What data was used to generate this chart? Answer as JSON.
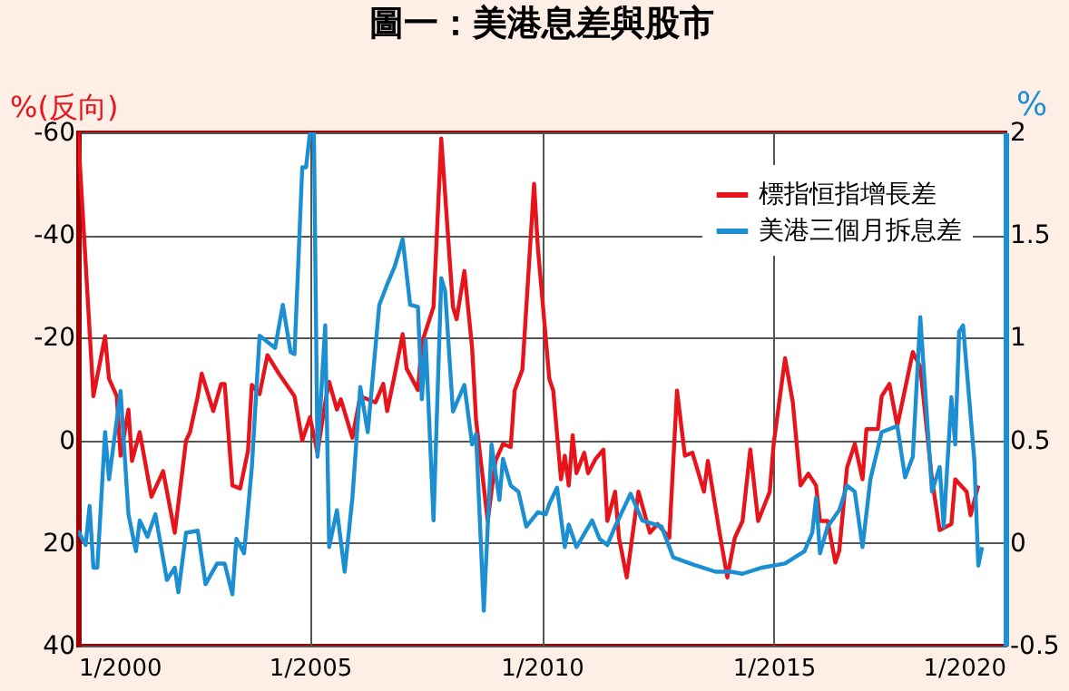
{
  "chart_data": {
    "type": "line",
    "title": "圖一：美港息差與股市",
    "ylabel": "%(反向)",
    "y2label": "%",
    "xlim": [
      "2000-01",
      "2020-01"
    ],
    "xticks": [
      {
        "value": "2000-01",
        "label": "1/2000"
      },
      {
        "value": "2005-01",
        "label": "1/2005"
      },
      {
        "value": "2010-01",
        "label": "1/2010"
      },
      {
        "value": "2015-01",
        "label": "1/2015"
      },
      {
        "value": "2020-01",
        "label": "1/2020"
      }
    ],
    "ylim": [
      40,
      -60
    ],
    "yticks": [
      -60,
      -40,
      -20,
      0,
      20,
      40
    ],
    "y2lim": [
      -0.5,
      2
    ],
    "y2ticks": [
      -0.5,
      0,
      0.5,
      1,
      1.5,
      2
    ],
    "grid": true,
    "legend": "top right",
    "line_style": "solid",
    "series": [
      {
        "name": "標指恒指增長差",
        "color": "#e8141b",
        "x": [
          "2000-01",
          "2000-05",
          "2000-08",
          "2000-09",
          "2000-11",
          "2000-12",
          "2001-02",
          "2001-03",
          "2001-05",
          "2001-08",
          "2001-11",
          "2002-02",
          "2002-05",
          "2002-06",
          "2002-08",
          "2002-09",
          "2002-12",
          "2003-02",
          "2003-03",
          "2003-05",
          "2003-07",
          "2003-09",
          "2003-10",
          "2003-12",
          "2004-02",
          "2004-05",
          "2004-09",
          "2004-11",
          "2005-01",
          "2005-03",
          "2005-05",
          "2005-06",
          "2005-08",
          "2005-09",
          "2005-12",
          "2006-02",
          "2006-06",
          "2006-08",
          "2006-09",
          "2006-11",
          "2007-01",
          "2007-02",
          "2007-05",
          "2007-06",
          "2007-09",
          "2007-11",
          "2008-02",
          "2008-03",
          "2008-05",
          "2008-07",
          "2008-08",
          "2008-11",
          "2009-01",
          "2009-03",
          "2009-05",
          "2009-06",
          "2009-08",
          "2009-11",
          "2009-12",
          "2010-03",
          "2010-04",
          "2010-06",
          "2010-07",
          "2010-08",
          "2010-09",
          "2010-10",
          "2010-12",
          "2011-01",
          "2011-03",
          "2011-05",
          "2011-06",
          "2011-08",
          "2011-09",
          "2011-11",
          "2012-02",
          "2012-05",
          "2012-07",
          "2012-10",
          "2012-12",
          "2013-02",
          "2013-04",
          "2013-07",
          "2013-08",
          "2013-11",
          "2014-01",
          "2014-03",
          "2014-05",
          "2014-07",
          "2014-09",
          "2014-12",
          "2015-01",
          "2015-04",
          "2015-06",
          "2015-08",
          "2015-10",
          "2015-12",
          "2016-01",
          "2016-03",
          "2016-05",
          "2016-06",
          "2016-08",
          "2016-10",
          "2016-12",
          "2017-01",
          "2017-04",
          "2017-05",
          "2017-07",
          "2017-09",
          "2018-01",
          "2018-03",
          "2018-06",
          "2018-08",
          "2018-11",
          "2018-12",
          "2019-03",
          "2019-04",
          "2019-06"
        ],
        "values": [
          -60,
          -8.6,
          -20.3,
          -12,
          -8.6,
          3,
          -6,
          4,
          -1.6,
          11,
          6,
          18,
          0,
          -1.6,
          -8.6,
          -13,
          -5.7,
          -11,
          -11,
          8.8,
          9.4,
          2,
          -10.8,
          -9,
          -16.6,
          -13,
          -8.6,
          0,
          -4.5,
          2.4,
          -7.4,
          -11.4,
          -6,
          -8,
          -0.5,
          -8.6,
          -7.4,
          -11,
          -5.7,
          -13,
          -20.7,
          -14,
          -9.8,
          -19,
          -26,
          -58.8,
          -26,
          -23.6,
          -33,
          -18,
          -4,
          15.7,
          4,
          0.7,
          1.3,
          -9.7,
          -13.8,
          -50,
          -37.5,
          -12,
          -9.7,
          7.6,
          3,
          8.8,
          -1,
          6.4,
          2.4,
          6.4,
          3.6,
          1.8,
          15.7,
          10,
          19,
          26.7,
          10,
          18,
          16.3,
          19,
          -9.7,
          3,
          2.4,
          10,
          4,
          18,
          26.7,
          19,
          15.7,
          1.8,
          15.7,
          10,
          0.7,
          -16,
          -7.4,
          8.8,
          6.5,
          8.8,
          15.7,
          15.7,
          23.8,
          21.5,
          5.3,
          0.7,
          7.6,
          -2.2,
          -2.2,
          -8.6,
          -11,
          -2.8,
          -17.2,
          -14.3,
          7.6,
          17.5,
          16.3,
          7.6,
          10,
          14.6,
          8.8
        ]
      },
      {
        "name": "美港三個月拆息差",
        "color": "#1b8fd2",
        "axis": "y2",
        "x": [
          "2000-01",
          "2000-03",
          "2000-04",
          "2000-05",
          "2000-06",
          "2000-08",
          "2000-09",
          "2000-12",
          "2001-02",
          "2001-04",
          "2001-05",
          "2001-07",
          "2001-09",
          "2001-12",
          "2002-02",
          "2002-03",
          "2002-05",
          "2002-08",
          "2002-10",
          "2003-01",
          "2003-03",
          "2003-05",
          "2003-06",
          "2003-08",
          "2003-10",
          "2003-12",
          "2004-04",
          "2004-06",
          "2004-08",
          "2004-09",
          "2004-11",
          "2004-12",
          "2005-01",
          "2005-02",
          "2005-03",
          "2005-05",
          "2005-06",
          "2005-08",
          "2005-10",
          "2005-12",
          "2006-02",
          "2006-04",
          "2006-07",
          "2006-09",
          "2006-11",
          "2007-01",
          "2007-03",
          "2007-05",
          "2007-06",
          "2007-07",
          "2007-09",
          "2007-11",
          "2007-12",
          "2008-02",
          "2008-05",
          "2008-07",
          "2008-08",
          "2008-10",
          "2008-12",
          "2009-02",
          "2009-03",
          "2009-05",
          "2009-07",
          "2009-09",
          "2009-12",
          "2010-02",
          "2010-03",
          "2010-05",
          "2010-07",
          "2010-08",
          "2010-10",
          "2011-02",
          "2011-04",
          "2011-06",
          "2011-08",
          "2011-12",
          "2012-03",
          "2012-08",
          "2012-11",
          "2013-05",
          "2013-10",
          "2014-02",
          "2014-05",
          "2014-10",
          "2015-04",
          "2015-09",
          "2015-11",
          "2015-12",
          "2016-01",
          "2016-03",
          "2016-06",
          "2016-08",
          "2016-10",
          "2016-12",
          "2017-02",
          "2017-05",
          "2017-09",
          "2017-11",
          "2018-01",
          "2018-03",
          "2018-06",
          "2018-08",
          "2018-09",
          "2018-11",
          "2018-12",
          "2019-01",
          "2019-02",
          "2019-05",
          "2019-06",
          "2019-07"
        ],
        "values": [
          0.06,
          -0.01,
          0.18,
          -0.12,
          -0.12,
          0.54,
          0.31,
          0.74,
          0.14,
          -0.04,
          0.11,
          0.03,
          0.14,
          -0.18,
          -0.12,
          -0.24,
          0.05,
          0.06,
          -0.2,
          -0.1,
          -0.1,
          -0.25,
          0.02,
          -0.05,
          0.37,
          1.01,
          0.95,
          1.16,
          0.93,
          0.92,
          1.83,
          1.83,
          2,
          2,
          0.42,
          1.06,
          -0.02,
          0.16,
          -0.14,
          0.22,
          0.76,
          0.54,
          1.16,
          1.26,
          1.35,
          1.48,
          1.16,
          1.15,
          0.7,
          0.99,
          0.11,
          1.29,
          1.23,
          0.64,
          0.77,
          0.48,
          0.53,
          -0.33,
          0.48,
          0.21,
          0.41,
          0.28,
          0.25,
          0.08,
          0.15,
          0.14,
          0.19,
          0.27,
          -0.02,
          0.09,
          -0.02,
          0.11,
          0.02,
          -0.01,
          0.08,
          0.24,
          0.11,
          0.08,
          -0.07,
          -0.11,
          -0.14,
          -0.14,
          -0.15,
          -0.12,
          -0.1,
          -0.04,
          0.05,
          0.22,
          -0.05,
          0.08,
          0.16,
          0.28,
          0.25,
          -0.02,
          0.31,
          0.54,
          0.57,
          0.32,
          0.42,
          1.1,
          0.25,
          0.37,
          0.08,
          0.71,
          0.48,
          1.03,
          1.06,
          0.4,
          -0.11,
          -0.02
        ]
      }
    ]
  }
}
